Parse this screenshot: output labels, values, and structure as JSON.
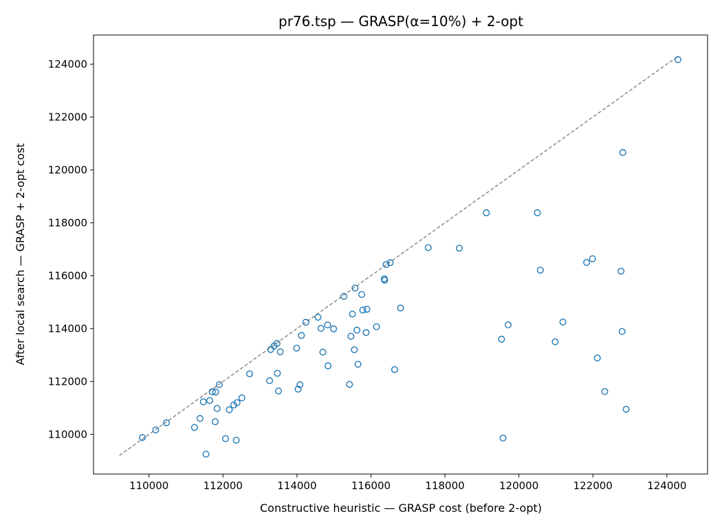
{
  "colors": {
    "marker": "#1f77b4",
    "reference_line": "#808080",
    "frame": "#000000"
  },
  "chart_data": {
    "type": "scatter",
    "title": "pr76.tsp — GRASP(α=10%) + 2-opt",
    "xlabel": "Constructive heuristic — GRASP cost (before 2-opt)",
    "ylabel": "After local search — GRASP + 2-opt cost",
    "xlim": [
      108500,
      125100
    ],
    "ylim": [
      108500,
      125100
    ],
    "xticks": [
      110000,
      112000,
      114000,
      116000,
      118000,
      120000,
      122000,
      124000
    ],
    "yticks": [
      110000,
      112000,
      114000,
      116000,
      118000,
      120000,
      122000,
      124000
    ],
    "grid": false,
    "reference_line": {
      "style": "dashed",
      "from": [
        109200,
        109200
      ],
      "to": [
        124300,
        124300
      ]
    },
    "series": [
      {
        "marker": "open-circle",
        "points": [
          [
            109820,
            109880
          ],
          [
            110180,
            110170
          ],
          [
            110470,
            110440
          ],
          [
            111230,
            110260
          ],
          [
            111380,
            110600
          ],
          [
            111470,
            111230
          ],
          [
            111540,
            109250
          ],
          [
            111640,
            111280
          ],
          [
            111710,
            111610
          ],
          [
            111790,
            110480
          ],
          [
            111800,
            111600
          ],
          [
            111840,
            110980
          ],
          [
            111900,
            111880
          ],
          [
            112070,
            109840
          ],
          [
            112170,
            110930
          ],
          [
            112290,
            111110
          ],
          [
            112360,
            109780
          ],
          [
            112380,
            111200
          ],
          [
            112510,
            111380
          ],
          [
            112720,
            112290
          ],
          [
            113260,
            112030
          ],
          [
            113290,
            113210
          ],
          [
            113380,
            113340
          ],
          [
            113460,
            113440
          ],
          [
            113470,
            112310
          ],
          [
            113500,
            111640
          ],
          [
            113550,
            113120
          ],
          [
            113990,
            113260
          ],
          [
            114030,
            111710
          ],
          [
            114080,
            111880
          ],
          [
            114120,
            113740
          ],
          [
            114240,
            114240
          ],
          [
            114570,
            114430
          ],
          [
            114650,
            114010
          ],
          [
            114700,
            113110
          ],
          [
            114830,
            114140
          ],
          [
            114840,
            112590
          ],
          [
            114990,
            113990
          ],
          [
            115270,
            115220
          ],
          [
            115420,
            111890
          ],
          [
            115460,
            113710
          ],
          [
            115500,
            114550
          ],
          [
            115550,
            113200
          ],
          [
            115570,
            115530
          ],
          [
            115620,
            113940
          ],
          [
            115650,
            112650
          ],
          [
            115750,
            115290
          ],
          [
            115780,
            114700
          ],
          [
            115870,
            113850
          ],
          [
            115890,
            114730
          ],
          [
            116150,
            114070
          ],
          [
            116360,
            115880
          ],
          [
            116370,
            115830
          ],
          [
            116410,
            116420
          ],
          [
            116520,
            116490
          ],
          [
            116640,
            112450
          ],
          [
            116800,
            114780
          ],
          [
            117550,
            117060
          ],
          [
            118390,
            117040
          ],
          [
            119120,
            118380
          ],
          [
            119530,
            113600
          ],
          [
            119570,
            109860
          ],
          [
            119710,
            114140
          ],
          [
            120500,
            118380
          ],
          [
            120580,
            116210
          ],
          [
            120980,
            113500
          ],
          [
            121190,
            114250
          ],
          [
            121830,
            116500
          ],
          [
            121990,
            116640
          ],
          [
            122120,
            112890
          ],
          [
            122320,
            111620
          ],
          [
            122760,
            116170
          ],
          [
            122790,
            113890
          ],
          [
            122810,
            120660
          ],
          [
            122900,
            110950
          ],
          [
            124300,
            124170
          ]
        ]
      }
    ]
  }
}
